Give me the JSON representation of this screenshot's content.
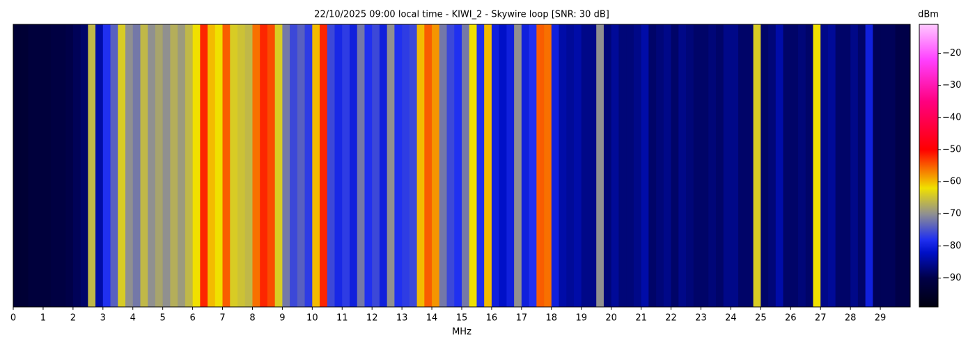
{
  "chart_data": {
    "type": "heatmap",
    "title": "22/10/2025 09:00 local time - KIWI_2 - Skywire loop [SNR: 30 dB]",
    "xlabel": "MHz",
    "colorbar_label": "dBm",
    "xlim": [
      0,
      30
    ],
    "xticks": [
      0,
      1,
      2,
      3,
      4,
      5,
      6,
      7,
      8,
      9,
      10,
      11,
      12,
      13,
      14,
      15,
      16,
      17,
      18,
      19,
      20,
      21,
      22,
      23,
      24,
      25,
      26,
      27,
      28,
      29
    ],
    "bin_width": 0.25,
    "x": [
      0,
      0.25,
      0.5,
      0.75,
      1,
      1.25,
      1.5,
      1.75,
      2,
      2.25,
      2.5,
      2.75,
      3,
      3.25,
      3.5,
      3.75,
      4,
      4.25,
      4.5,
      4.75,
      5,
      5.25,
      5.5,
      5.75,
      6,
      6.25,
      6.5,
      6.75,
      7,
      7.25,
      7.5,
      7.75,
      8,
      8.25,
      8.5,
      8.75,
      9,
      9.25,
      9.5,
      9.75,
      10,
      10.25,
      10.5,
      10.75,
      11,
      11.25,
      11.5,
      11.75,
      12,
      12.25,
      12.5,
      12.75,
      13,
      13.25,
      13.5,
      13.75,
      14,
      14.25,
      14.5,
      14.75,
      15,
      15.25,
      15.5,
      15.75,
      16,
      16.25,
      16.5,
      16.75,
      17,
      17.25,
      17.5,
      17.75,
      18,
      18.25,
      18.5,
      18.75,
      19,
      19.25,
      19.5,
      19.75,
      20,
      20.25,
      20.5,
      20.75,
      21,
      21.25,
      21.5,
      21.75,
      22,
      22.25,
      22.5,
      22.75,
      23,
      23.25,
      23.5,
      23.75,
      24,
      24.25,
      24.5,
      24.75,
      25,
      25.25,
      25.5,
      25.75,
      26,
      26.25,
      26.5,
      26.75,
      27,
      27.25,
      27.5,
      27.75,
      28,
      28.25,
      28.5,
      28.75,
      29,
      29.25,
      29.5,
      29.75
    ],
    "values": [
      -93,
      -93,
      -92,
      -92,
      -92,
      -91,
      -91,
      -90,
      -89,
      -88,
      -66,
      -84,
      -78,
      -74,
      -64,
      -70,
      -72,
      -66,
      -70,
      -68,
      -70,
      -67,
      -69,
      -66,
      -62,
      -52,
      -60,
      -62,
      -55,
      -64,
      -65,
      -66,
      -56,
      -52,
      -54,
      -64,
      -72,
      -76,
      -74,
      -77,
      -60,
      -52,
      -76,
      -79,
      -77,
      -80,
      -72,
      -78,
      -76,
      -80,
      -70,
      -78,
      -77,
      -76,
      -60,
      -55,
      -58,
      -72,
      -76,
      -78,
      -72,
      -62,
      -78,
      -60,
      -80,
      -82,
      -80,
      -70,
      -80,
      -78,
      -55,
      -56,
      -80,
      -84,
      -85,
      -84,
      -86,
      -86,
      -70,
      -87,
      -85,
      -87,
      -87,
      -86,
      -84,
      -88,
      -87,
      -86,
      -88,
      -86,
      -87,
      -88,
      -88,
      -87,
      -88,
      -86,
      -86,
      -88,
      -88,
      -64,
      -88,
      -87,
      -84,
      -88,
      -88,
      -87,
      -88,
      -62,
      -86,
      -85,
      -88,
      -88,
      -86,
      -88,
      -80,
      -89,
      -89,
      -89,
      -90,
      -90
    ],
    "clim": [
      -99,
      -11
    ],
    "cticks": [
      {
        "value": -20,
        "label": "−20"
      },
      {
        "value": -30,
        "label": "−30"
      },
      {
        "value": -40,
        "label": "−40"
      },
      {
        "value": -50,
        "label": "−50"
      },
      {
        "value": -60,
        "label": "−60"
      },
      {
        "value": -70,
        "label": "−70"
      },
      {
        "value": -80,
        "label": "−80"
      },
      {
        "value": -90,
        "label": "−90"
      }
    ],
    "colorscale": [
      {
        "value": -99,
        "color": "#000010"
      },
      {
        "value": -90,
        "color": "#000048"
      },
      {
        "value": -82,
        "color": "#0010c8"
      },
      {
        "value": -78,
        "color": "#2030f0"
      },
      {
        "value": -70,
        "color": "#909090"
      },
      {
        "value": -62,
        "color": "#f0e000"
      },
      {
        "value": -50,
        "color": "#ff0000"
      },
      {
        "value": -35,
        "color": "#ff0080"
      },
      {
        "value": -22,
        "color": "#ff40ff"
      },
      {
        "value": -11,
        "color": "#ffc8ff"
      }
    ]
  }
}
